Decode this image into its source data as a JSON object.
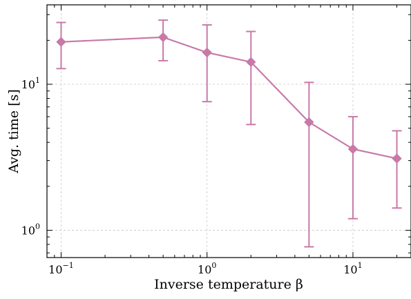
{
  "chart_data": {
    "type": "line",
    "xlabel": "Inverse temperature β",
    "ylabel": "Avg. time [s]",
    "xscale": "log",
    "yscale": "log",
    "xlim": [
      0.08,
      25
    ],
    "ylim": [
      0.65,
      35
    ],
    "grid": true,
    "x_tick_labels": [
      {
        "base": "10",
        "exp": "−1",
        "value": 0.1
      },
      {
        "base": "10",
        "exp": "0",
        "value": 1
      },
      {
        "base": "10",
        "exp": "1",
        "value": 10
      }
    ],
    "y_tick_labels": [
      {
        "base": "10",
        "exp": "0",
        "value": 1
      },
      {
        "base": "10",
        "exp": "1",
        "value": 10
      }
    ],
    "series": [
      {
        "color": "#c879a8",
        "marker": "diamond",
        "x": [
          0.1,
          0.5,
          1,
          2,
          5,
          10,
          20
        ],
        "y": [
          19.5,
          21,
          16.5,
          14.2,
          5.5,
          3.6,
          3.1
        ],
        "y_lower": [
          12.8,
          14.5,
          7.6,
          5.3,
          0.77,
          1.2,
          1.42
        ],
        "y_upper": [
          26.5,
          27.5,
          25.5,
          23,
          10.3,
          6.0,
          4.8
        ]
      }
    ]
  }
}
